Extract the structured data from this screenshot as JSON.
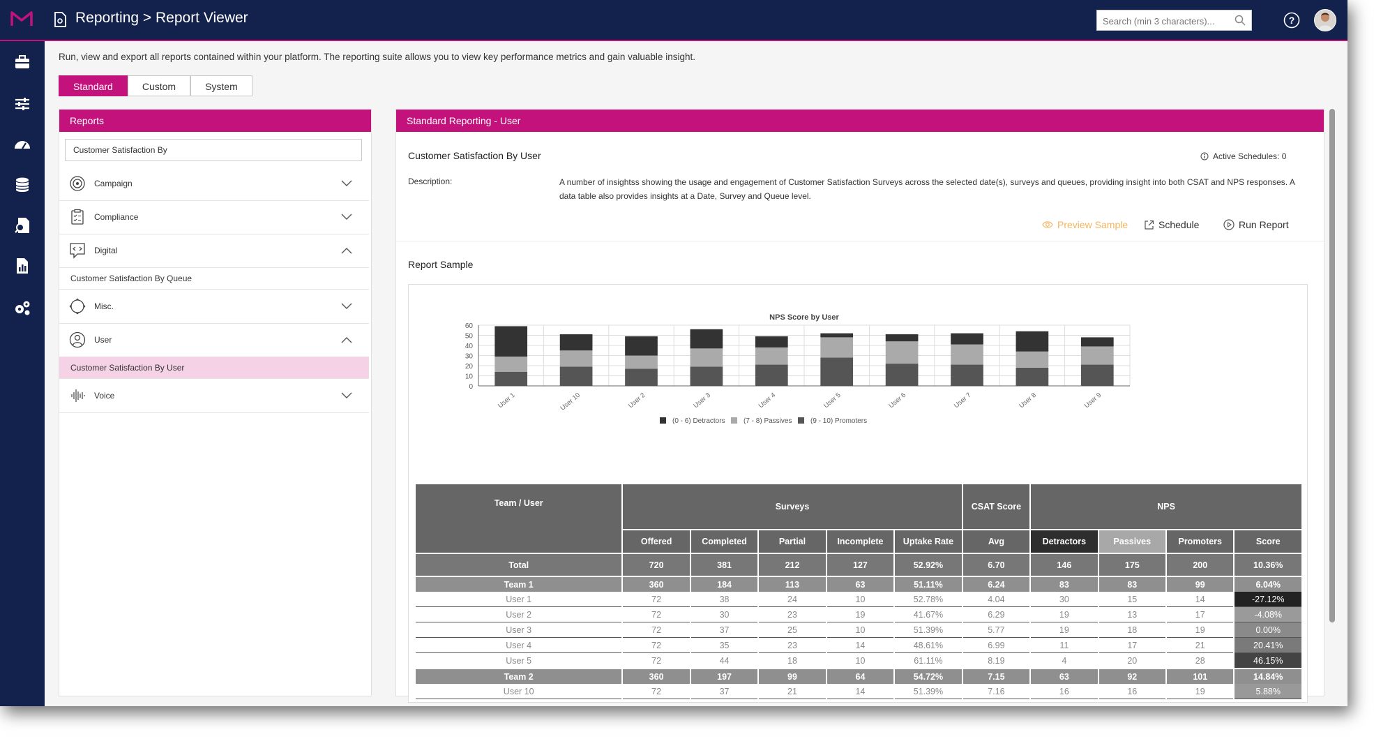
{
  "header": {
    "breadcrumb": "Reporting > Report Viewer",
    "search_placeholder": "Search (min 3 characters)..."
  },
  "sidebar_icons": [
    "briefcase-icon",
    "sliders-icon",
    "dashboard-icon",
    "database-icon",
    "document-search-icon",
    "report-icon",
    "settings-icon"
  ],
  "intro": "Run, view and export all reports contained within your platform. The reporting suite allows you to view key performance metrics and gain valuable insight.",
  "tabs": [
    "Standard",
    "Custom",
    "System"
  ],
  "active_tab": "Standard",
  "reports_panel": {
    "title": "Reports",
    "filter_value": "Customer Satisfaction By",
    "categories": [
      "Campaign",
      "Compliance",
      "Digital",
      "Misc.",
      "User",
      "Voice"
    ],
    "digital_item": "Customer Satisfaction By Queue",
    "user_item": "Customer Satisfaction By User"
  },
  "detail": {
    "panel_title": "Standard Reporting - User",
    "report_name": "Customer Satisfaction By User",
    "active_schedules": "Active Schedules: 0",
    "description_label": "Description:",
    "description": "A number of insightss showing the usage and engagement of Customer Satisfaction Surveys across the selected date(s), surveys and queues, providing insight into both CSAT and NPS responses. A data table also provides insights at a Date, Survey and Queue level.",
    "actions": {
      "preview": "Preview Sample",
      "schedule": "Schedule",
      "run": "Run Report"
    },
    "sample_title": "Report Sample"
  },
  "chart_data": {
    "type": "bar",
    "stacked": true,
    "title": "NPS Score by User",
    "categories": [
      "User 1",
      "User 10",
      "User 2",
      "User 3",
      "User 4",
      "User 5",
      "User 6",
      "User 7",
      "User 8",
      "User 9"
    ],
    "series": [
      {
        "name": "(9 - 10) Promoters",
        "color": "#555555",
        "values": [
          14,
          19,
          17,
          19,
          21,
          28,
          22,
          21,
          18,
          21
        ]
      },
      {
        "name": "(7 - 8) Passives",
        "color": "#aaaaaa",
        "values": [
          15,
          16,
          13,
          18,
          17,
          20,
          22,
          20,
          16,
          18
        ]
      },
      {
        "name": "(0 - 6) Detractors",
        "color": "#333333",
        "values": [
          30,
          16,
          19,
          19,
          11,
          4,
          7,
          11,
          20,
          9
        ]
      }
    ],
    "legend_order": [
      "(0 - 6) Detractors",
      "(7 - 8) Passives",
      "(9 - 10) Promoters"
    ],
    "legend_colors": [
      "#333333",
      "#aaaaaa",
      "#555555"
    ],
    "yticks": [
      "0",
      "10",
      "20",
      "30",
      "40",
      "50",
      "60"
    ],
    "ylim": [
      0,
      60
    ],
    "grid": true,
    "legend_position": "bottom"
  },
  "table": {
    "group_headers": {
      "team": "Team / User",
      "surveys": "Surveys",
      "csat": "CSAT Score",
      "nps": "NPS"
    },
    "sub_headers": [
      "Offered",
      "Completed",
      "Partial",
      "Incomplete",
      "Uptake Rate",
      "Avg",
      "Detractors",
      "Passives",
      "Promoters",
      "Score"
    ],
    "rows": [
      {
        "type": "total",
        "cells": [
          "Total",
          "720",
          "381",
          "212",
          "127",
          "52.92%",
          "6.70",
          "146",
          "175",
          "200",
          "10.36%"
        ],
        "score_bg": "#777777"
      },
      {
        "type": "team",
        "cells": [
          "Team 1",
          "360",
          "184",
          "113",
          "63",
          "51.11%",
          "6.24",
          "83",
          "83",
          "99",
          "6.04%"
        ],
        "score_bg": "#8f8f8f"
      },
      {
        "type": "user",
        "cells": [
          "User 1",
          "72",
          "38",
          "24",
          "10",
          "52.78%",
          "4.04",
          "30",
          "15",
          "14",
          "-27.12%"
        ],
        "score_bg": "#222222"
      },
      {
        "type": "user",
        "cells": [
          "User 2",
          "72",
          "30",
          "23",
          "19",
          "41.67%",
          "6.29",
          "19",
          "13",
          "17",
          "-4.08%"
        ],
        "score_bg": "#9a9a9a"
      },
      {
        "type": "user",
        "cells": [
          "User 3",
          "72",
          "37",
          "25",
          "10",
          "51.39%",
          "5.77",
          "19",
          "18",
          "19",
          "0.00%"
        ],
        "score_bg": "#8a8a8a"
      },
      {
        "type": "user",
        "cells": [
          "User 4",
          "72",
          "35",
          "23",
          "14",
          "48.61%",
          "6.99",
          "11",
          "17",
          "21",
          "20.41%"
        ],
        "score_bg": "#7a7a7a"
      },
      {
        "type": "user",
        "cells": [
          "User 5",
          "72",
          "44",
          "18",
          "10",
          "61.11%",
          "8.19",
          "4",
          "20",
          "28",
          "46.15%"
        ],
        "score_bg": "#444444"
      },
      {
        "type": "team",
        "cells": [
          "Team 2",
          "360",
          "197",
          "99",
          "64",
          "54.72%",
          "7.15",
          "63",
          "92",
          "101",
          "14.84%"
        ],
        "score_bg": "#8f8f8f"
      },
      {
        "type": "user",
        "cells": [
          "User 10",
          "72",
          "37",
          "21",
          "14",
          "51.39%",
          "7.16",
          "16",
          "16",
          "19",
          "5.88%"
        ],
        "score_bg": "#999999"
      }
    ]
  }
}
